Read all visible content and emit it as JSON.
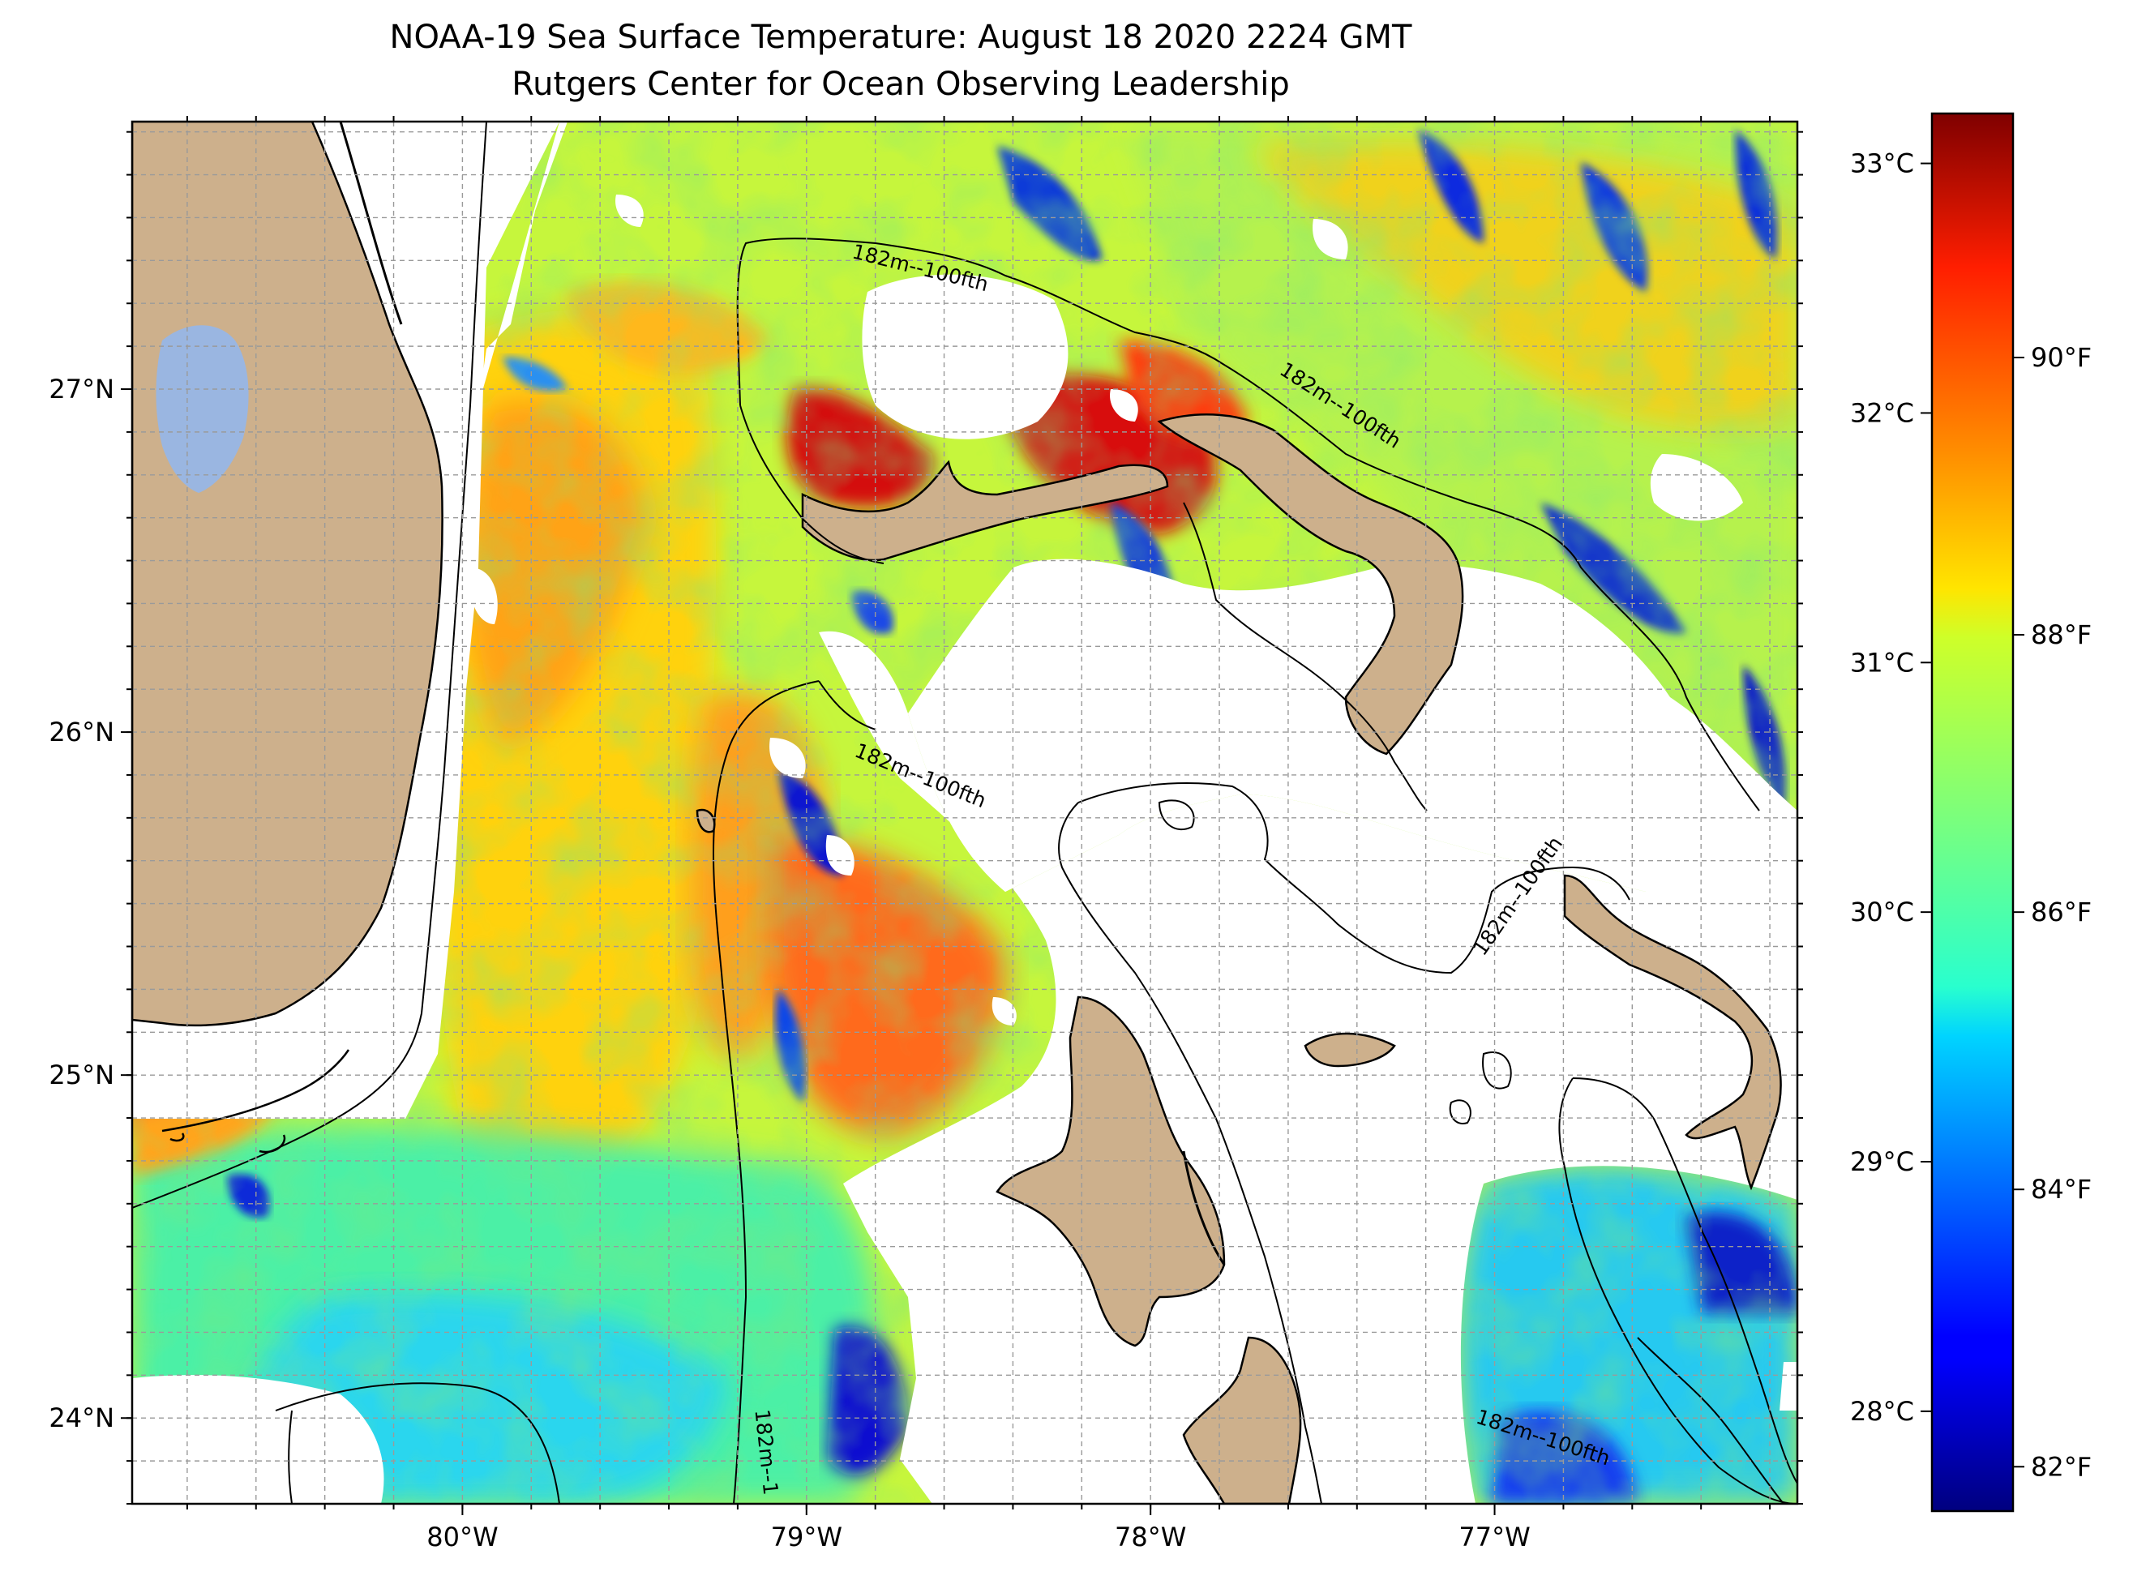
{
  "title": {
    "line1": "NOAA-19 Sea Surface Temperature: August 18 2020 2224 GMT",
    "line2": "Rutgers Center for Ocean Observing Leadership"
  },
  "map": {
    "lon_range": [
      -80.96,
      -76.12
    ],
    "lat_range": [
      23.75,
      27.78
    ],
    "gridlines": true,
    "lon_ticks": [
      {
        "value": -80,
        "label": "80°W"
      },
      {
        "value": -79,
        "label": "79°W"
      },
      {
        "value": -78,
        "label": "78°W"
      },
      {
        "value": -77,
        "label": "77°W"
      }
    ],
    "lat_ticks": [
      {
        "value": 24,
        "label": "24°N"
      },
      {
        "value": 25,
        "label": "25°N"
      },
      {
        "value": 26,
        "label": "26°N"
      },
      {
        "value": 27,
        "label": "27°N"
      }
    ],
    "contour_labels": [
      {
        "text": "182m--100fth",
        "lon": -78.67,
        "lat": 27.35,
        "angle": 14
      },
      {
        "text": "182m--100fth",
        "lon": -77.45,
        "lat": 26.95,
        "angle": 33
      },
      {
        "text": "182m--100fth",
        "lon": -78.67,
        "lat": 25.87,
        "angle": 22
      },
      {
        "text": "182m--100fth",
        "lon": -76.93,
        "lat": 25.52,
        "angle": -55
      },
      {
        "text": "182m--100fth",
        "lon": -76.86,
        "lat": 23.94,
        "angle": 18
      },
      {
        "text": "182m--1",
        "lon": -79.12,
        "lat": 23.9,
        "angle": 84
      }
    ],
    "colors": {
      "land": "#cdb08c",
      "lake": "#9ab6e1",
      "no_data": "#ffffff",
      "coastline": "#000000"
    }
  },
  "colorbar": {
    "colormap": "jet",
    "range_c": [
      27.6,
      33.2
    ],
    "celsius_ticks": [
      {
        "value": 28,
        "label": "28°C"
      },
      {
        "value": 29,
        "label": "29°C"
      },
      {
        "value": 30,
        "label": "30°C"
      },
      {
        "value": 31,
        "label": "31°C"
      },
      {
        "value": 32,
        "label": "32°C"
      },
      {
        "value": 33,
        "label": "33°C"
      }
    ],
    "fahrenheit_ticks": [
      {
        "value": 82,
        "label": "82°F"
      },
      {
        "value": 84,
        "label": "84°F"
      },
      {
        "value": 86,
        "label": "86°F"
      },
      {
        "value": 88,
        "label": "88°F"
      },
      {
        "value": 90,
        "label": "90°F"
      }
    ]
  }
}
